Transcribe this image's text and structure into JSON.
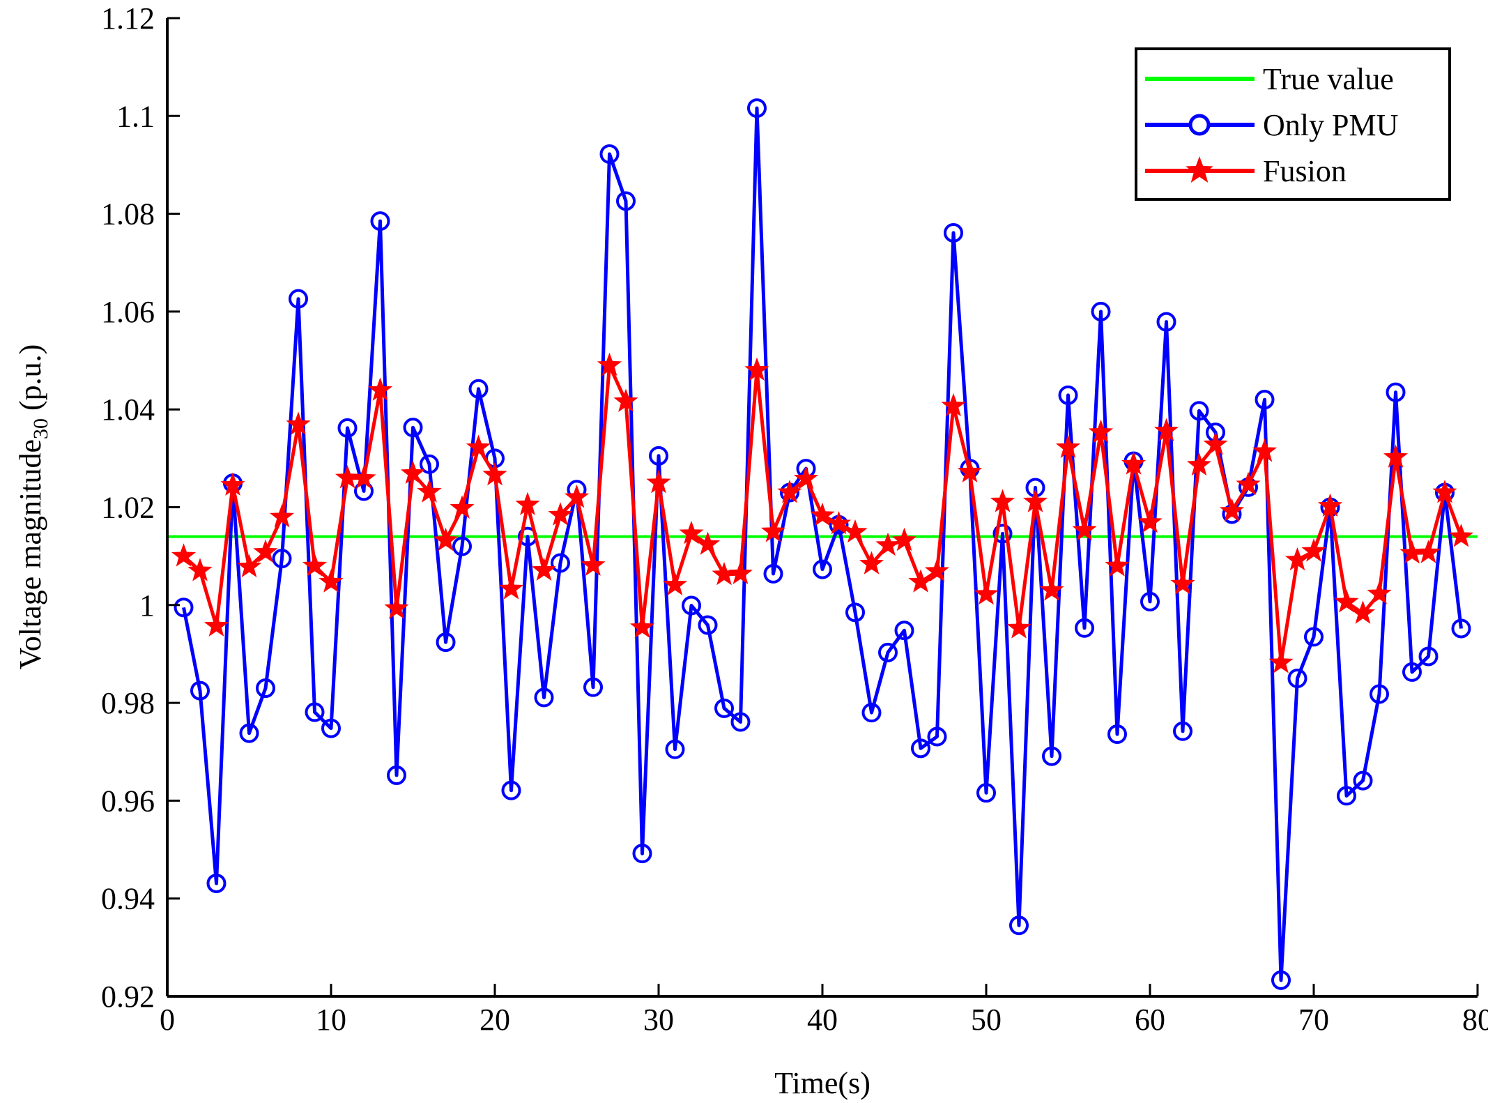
{
  "chart_data": {
    "type": "line",
    "xlabel": "Time(s)",
    "ylabel_main": "Voltage magnitude",
    "ylabel_sub": "30",
    "ylabel_unit": " (p.u.)",
    "xlim": [
      0,
      80
    ],
    "ylim": [
      0.92,
      1.12
    ],
    "xticks": [
      0,
      10,
      20,
      30,
      40,
      50,
      60,
      70,
      80
    ],
    "xtick_labels": [
      "0",
      "10",
      "20",
      "30",
      "40",
      "50",
      "60",
      "70",
      "80"
    ],
    "yticks": [
      0.92,
      0.94,
      0.96,
      0.98,
      1.0,
      1.02,
      1.04,
      1.06,
      1.08,
      1.1,
      1.12
    ],
    "ytick_labels": [
      "0.92",
      "0.94",
      "0.96",
      "0.98",
      "1",
      "1.02",
      "1.04",
      "1.06",
      "1.08",
      "1.1",
      "1.12"
    ],
    "legend_position": "top-right",
    "x": [
      1,
      2,
      3,
      4,
      5,
      6,
      7,
      8,
      9,
      10,
      11,
      12,
      13,
      14,
      15,
      16,
      17,
      18,
      19,
      20,
      21,
      22,
      23,
      24,
      25,
      26,
      27,
      28,
      29,
      30,
      31,
      32,
      33,
      34,
      35,
      36,
      37,
      38,
      39,
      40,
      41,
      42,
      43,
      44,
      45,
      46,
      47,
      48,
      49,
      50,
      51,
      52,
      53,
      54,
      55,
      56,
      57,
      58,
      59,
      60,
      61,
      62,
      63,
      64,
      65,
      66,
      67,
      68,
      69,
      70,
      71,
      72,
      73,
      74,
      75,
      76,
      77,
      78,
      79
    ],
    "series": [
      {
        "name": "True value",
        "color": "#00ff00",
        "marker": "none",
        "x": [
          0,
          80
        ],
        "values": [
          1.014,
          1.014
        ]
      },
      {
        "name": "Only PMU",
        "color": "#0000ff",
        "marker": "circle",
        "values": [
          0.9995,
          0.9825,
          0.9431,
          1.0249,
          0.9738,
          0.983,
          1.0095,
          1.0626,
          0.9781,
          0.9748,
          1.0362,
          1.0233,
          1.0785,
          0.9652,
          1.0363,
          1.0288,
          0.9924,
          1.012,
          1.0442,
          1.03,
          0.9621,
          1.014,
          0.9811,
          1.0086,
          1.0236,
          0.9832,
          1.0922,
          1.0826,
          0.9492,
          1.0305,
          0.9705,
          0.9999,
          0.9959,
          0.9789,
          0.9761,
          1.1016,
          1.0064,
          1.023,
          1.0279,
          1.0073,
          1.0164,
          0.9985,
          0.978,
          0.9903,
          0.9948,
          0.9707,
          0.9731,
          1.0761,
          1.0279,
          0.9616,
          1.0146,
          0.9345,
          1.024,
          0.9691,
          1.0429,
          0.9953,
          1.06,
          0.9736,
          1.0294,
          1.0007,
          1.0579,
          0.9742,
          1.0397,
          1.0353,
          1.0186,
          1.0241,
          1.042,
          0.9233,
          0.985,
          0.9935,
          1.02,
          0.961,
          0.9641,
          0.9818,
          1.0435,
          0.9863,
          0.9895,
          1.023,
          0.9952
        ]
      },
      {
        "name": "Fusion",
        "color": "#ff0000",
        "marker": "star",
        "values": [
          1.01,
          1.007,
          0.9957,
          1.0245,
          1.0078,
          1.0108,
          1.018,
          1.0369,
          1.008,
          1.0047,
          1.026,
          1.0259,
          1.0439,
          0.9993,
          1.0269,
          1.0231,
          1.0132,
          1.0198,
          1.0322,
          1.0266,
          1.0033,
          1.0205,
          1.0071,
          1.0184,
          1.022,
          1.0081,
          1.049,
          1.0416,
          0.9954,
          1.025,
          1.0041,
          1.0146,
          1.0124,
          1.0062,
          1.0064,
          1.048,
          1.015,
          1.023,
          1.0258,
          1.0183,
          1.0166,
          1.0149,
          1.0084,
          1.0122,
          1.0132,
          1.0047,
          1.0069,
          1.0407,
          1.0272,
          1.0022,
          1.0211,
          0.9953,
          1.0211,
          1.003,
          1.0322,
          1.0153,
          1.0353,
          1.008,
          1.0288,
          1.0169,
          1.0356,
          1.0043,
          1.0286,
          1.0328,
          1.0192,
          1.0246,
          1.0314,
          0.9882,
          1.0092,
          1.011,
          1.0202,
          1.0006,
          0.9983,
          1.0023,
          1.0302,
          1.0106,
          1.0107,
          1.023,
          1.014
        ]
      }
    ]
  }
}
